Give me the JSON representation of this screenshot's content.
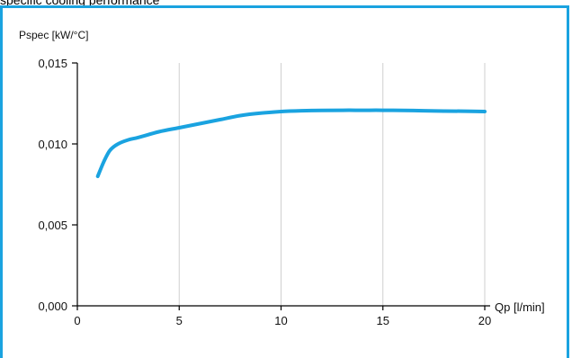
{
  "page": {
    "title": "specific cooling performance"
  },
  "colors": {
    "accent": "#1aa3e0",
    "line": "#1aa3e0",
    "grid": "#cfcfcf",
    "axis": "#000000"
  },
  "chart_data": {
    "type": "line",
    "title": "specific cooling performance",
    "xlabel": "Qp [l/min]",
    "ylabel": "Pspec [kW/°C]",
    "xlim": [
      0,
      20
    ],
    "ylim": [
      0,
      0.015
    ],
    "xticks": [
      0,
      5,
      10,
      15,
      20
    ],
    "xtick_labels": [
      "0",
      "5",
      "10",
      "15",
      "20"
    ],
    "yticks": [
      0,
      0.005,
      0.01,
      0.015
    ],
    "ytick_labels": [
      "0,000",
      "0,005",
      "0,010",
      "0,015"
    ],
    "grid": "vertical",
    "series": [
      {
        "x": [
          1.0,
          1.3,
          1.6,
          2.0,
          2.5,
          3.0,
          4.0,
          5.0,
          6.0,
          7.0,
          8.0,
          9.0,
          10.0,
          11.0,
          12.0,
          13.0,
          14.0,
          15.0,
          16.0,
          17.0,
          18.0,
          19.0,
          20.0
        ],
        "y": [
          0.008,
          0.0089,
          0.0096,
          0.01,
          0.01025,
          0.0104,
          0.01075,
          0.011,
          0.01125,
          0.0115,
          0.01175,
          0.0119,
          0.012,
          0.01205,
          0.01207,
          0.01208,
          0.01208,
          0.01208,
          0.01207,
          0.01205,
          0.01203,
          0.01202,
          0.012
        ]
      }
    ]
  }
}
